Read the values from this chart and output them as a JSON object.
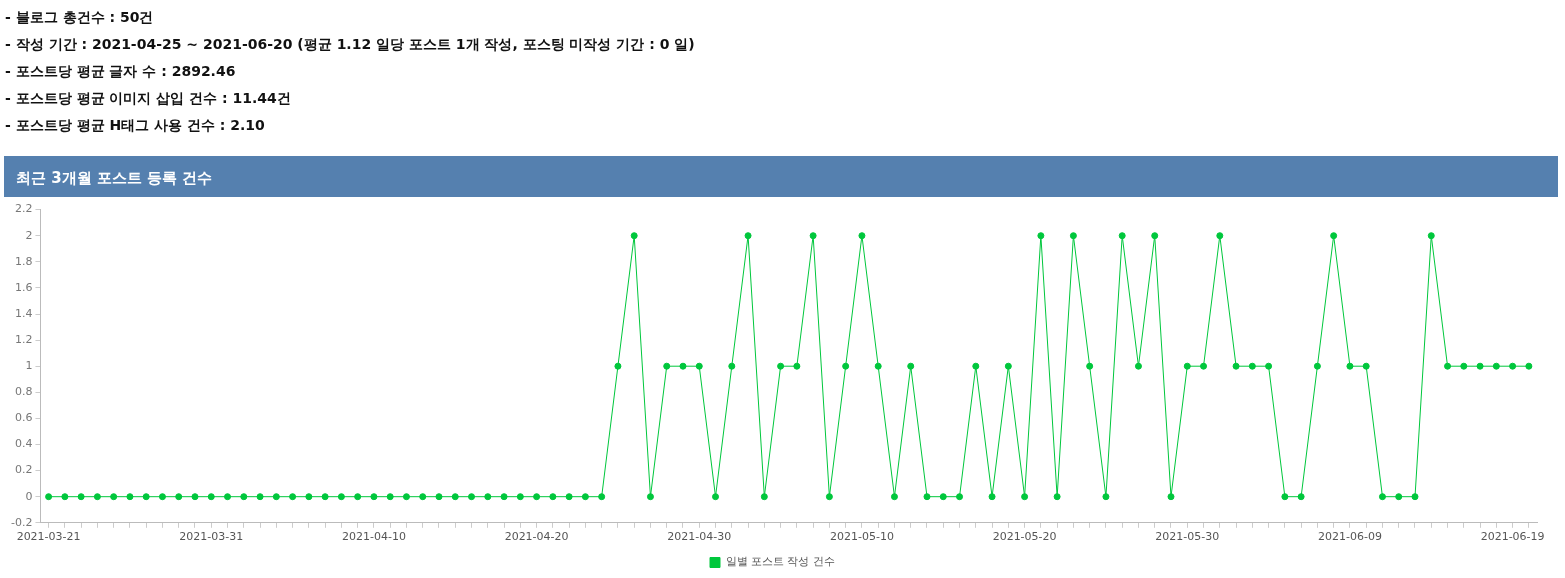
{
  "chart_data": {
    "type": "line",
    "title": "최근 3개월 포스트 등록 건수",
    "annotations": [
      "- 블로그 총건수 : 50건",
      "- 작성 기간 : 2021-04-25 ~ 2021-06-20 (평균 1.12 일당 포스트 1개 작성, 포스팅 미작성 기간 : 0 일)",
      "- 포스트당 평균 글자 수 : 2892.46",
      "- 포스트당 평균 이미지 삽입 건수 : 11.44건",
      "- 포스트당 평균 H태그 사용 건수 : 2.10"
    ],
    "categories": [
      "2021-03-21",
      null,
      null,
      null,
      null,
      null,
      null,
      null,
      null,
      null,
      "2021-03-31",
      null,
      null,
      null,
      null,
      null,
      null,
      null,
      null,
      null,
      "2021-04-10",
      null,
      null,
      null,
      null,
      null,
      null,
      null,
      null,
      null,
      "2021-04-20",
      null,
      null,
      null,
      null,
      null,
      null,
      null,
      null,
      null,
      "2021-04-30",
      null,
      null,
      null,
      null,
      null,
      null,
      null,
      null,
      null,
      "2021-05-10",
      null,
      null,
      null,
      null,
      null,
      null,
      null,
      null,
      null,
      "2021-05-20",
      null,
      null,
      null,
      null,
      null,
      null,
      null,
      null,
      null,
      "2021-05-30",
      null,
      null,
      null,
      null,
      null,
      null,
      null,
      null,
      null,
      "2021-06-09",
      null,
      null,
      null,
      null,
      null,
      null,
      null,
      null,
      null,
      "2021-06-19",
      null
    ],
    "series": [
      {
        "name": "일별 포스트 작성 건수",
        "color": "#00c73c",
        "values": [
          0,
          0,
          0,
          0,
          0,
          0,
          0,
          0,
          0,
          0,
          0,
          0,
          0,
          0,
          0,
          0,
          0,
          0,
          0,
          0,
          0,
          0,
          0,
          0,
          0,
          0,
          0,
          0,
          0,
          0,
          0,
          0,
          0,
          0,
          0,
          1,
          2,
          0,
          1,
          1,
          1,
          0,
          1,
          2,
          0,
          1,
          1,
          2,
          0,
          1,
          2,
          1,
          0,
          1,
          0,
          0,
          0,
          1,
          0,
          1,
          0,
          2,
          0,
          2,
          1,
          0,
          2,
          1,
          2,
          0,
          1,
          1,
          2,
          1,
          1,
          1,
          0,
          0,
          1,
          2,
          1,
          1,
          0,
          0,
          0,
          2,
          1,
          1,
          1,
          1,
          1,
          1
        ]
      }
    ],
    "ylim": [
      -0.2,
      2.2
    ],
    "yticks": [
      -0.2,
      0,
      0.2,
      0.4,
      0.6,
      0.8,
      1,
      1.2,
      1.4,
      1.6,
      1.8,
      2,
      2.2
    ],
    "legend": "bottom",
    "marker": "circle",
    "line_style": "solid"
  }
}
